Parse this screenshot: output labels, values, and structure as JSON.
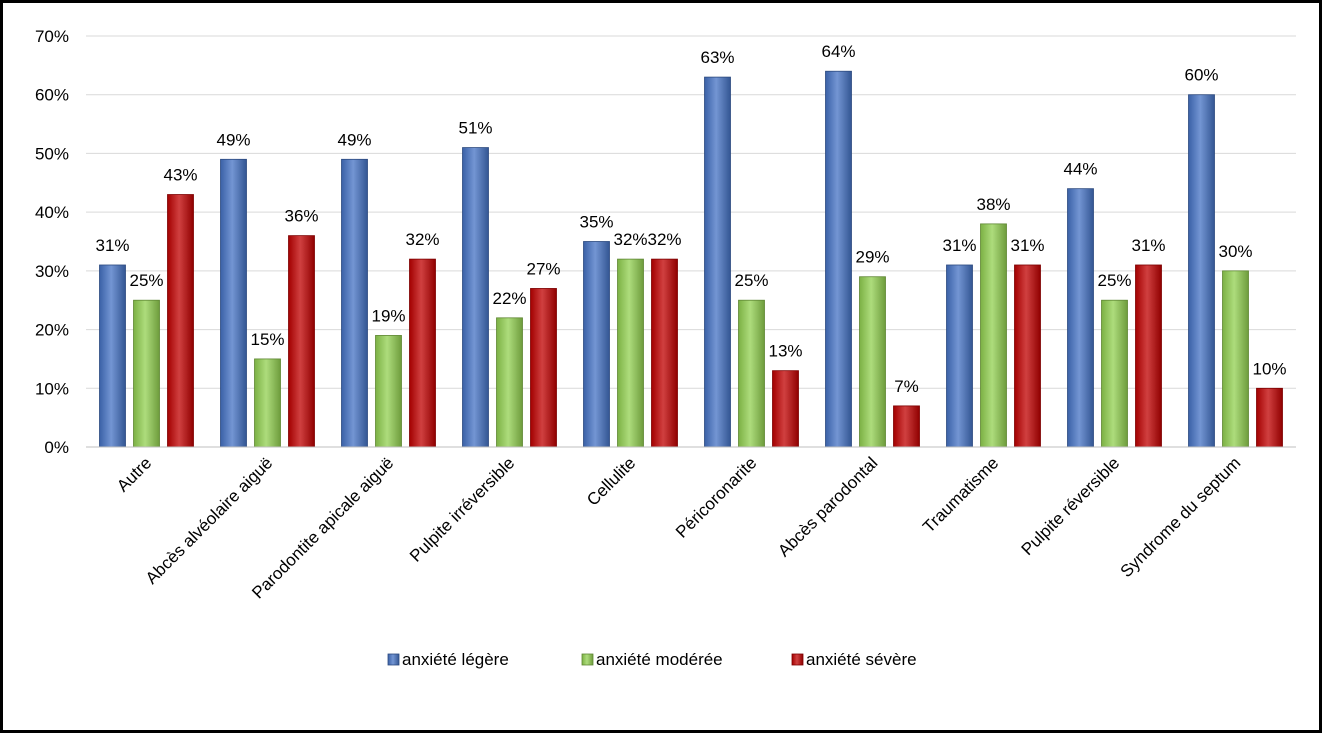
{
  "chart_data": {
    "type": "bar",
    "title": "",
    "xlabel": "",
    "ylabel": "",
    "ylim": [
      0,
      0.7
    ],
    "ytick_step": 0.1,
    "yticks": [
      "0%",
      "10%",
      "20%",
      "30%",
      "40%",
      "50%",
      "60%",
      "70%"
    ],
    "grid": true,
    "legend_position": "bottom",
    "categories": [
      "Autre",
      "Abcès alvéolaire aiguë",
      "Parodontite apicale aiguë",
      "Pulpite irréversible",
      "Cellulite",
      "Péricoronarite",
      "Abcès parodontal",
      "Traumatisme",
      "Pulpite réversible",
      "Syndrome du septum"
    ],
    "series": [
      {
        "name": "anxiété légère",
        "color": "#4472C4",
        "values": [
          0.31,
          0.49,
          0.49,
          0.51,
          0.35,
          0.63,
          0.64,
          0.31,
          0.44,
          0.6
        ],
        "labels": [
          "31%",
          "49%",
          "49%",
          "51%",
          "35%",
          "63%",
          "64%",
          "31%",
          "44%",
          "60%"
        ]
      },
      {
        "name": "anxiété modérée",
        "color": "#92D050",
        "values": [
          0.25,
          0.15,
          0.19,
          0.22,
          0.32,
          0.25,
          0.29,
          0.38,
          0.25,
          0.3
        ],
        "labels": [
          "25%",
          "15%",
          "19%",
          "22%",
          "32%",
          "25%",
          "29%",
          "38%",
          "25%",
          "30%"
        ]
      },
      {
        "name": "anxiété sévère",
        "color": "#C00000",
        "values": [
          0.43,
          0.36,
          0.32,
          0.27,
          0.32,
          0.13,
          0.07,
          0.31,
          0.31,
          0.1
        ],
        "labels": [
          "43%",
          "36%",
          "32%",
          "27%",
          "32%",
          "13%",
          "7%",
          "31%",
          "31%",
          "10%"
        ]
      }
    ]
  }
}
